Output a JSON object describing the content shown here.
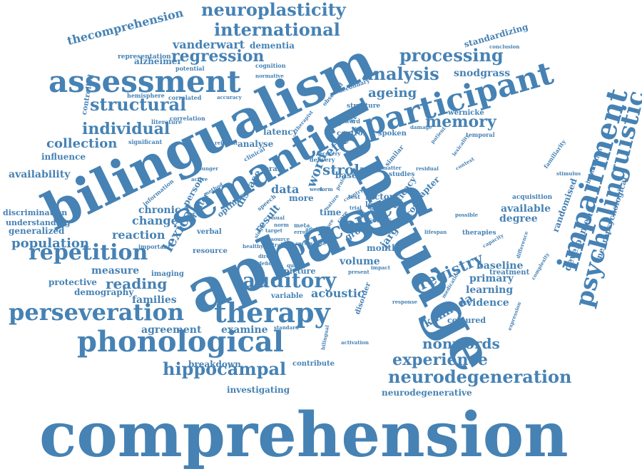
{
  "word_cloud": {
    "color": "#4682b4",
    "words": [
      {
        "text": "comprehension",
        "weight": 100
      },
      {
        "text": "language",
        "weight": 98
      },
      {
        "text": "aphasia",
        "weight": 96
      },
      {
        "text": "bilingualism",
        "weight": 95
      },
      {
        "text": "semantic",
        "weight": 75
      },
      {
        "text": "participant",
        "weight": 62
      },
      {
        "text": "impairment",
        "weight": 55
      },
      {
        "text": "psycholinguistic",
        "weight": 52
      },
      {
        "text": "assessment",
        "weight": 48
      },
      {
        "text": "phonological",
        "weight": 47
      },
      {
        "text": "therapy",
        "weight": 42
      },
      {
        "text": "outcome",
        "weight": 40
      },
      {
        "text": "perseveration",
        "weight": 40
      },
      {
        "text": "repetition",
        "weight": 37
      },
      {
        "text": "auditory",
        "weight": 33
      },
      {
        "text": "neuroplasticity",
        "weight": 30
      },
      {
        "text": "hippocampal",
        "weight": 30
      },
      {
        "text": "neurodegeneration",
        "weight": 30
      },
      {
        "text": "structural",
        "weight": 29
      },
      {
        "text": "processing",
        "weight": 28
      },
      {
        "text": "international",
        "weight": 28
      },
      {
        "text": "analysis",
        "weight": 27
      },
      {
        "text": "individual",
        "weight": 26
      },
      {
        "text": "regression",
        "weight": 26
      },
      {
        "text": "memory",
        "weight": 26
      },
      {
        "text": "experience",
        "weight": 26
      },
      {
        "text": "reading",
        "weight": 25
      },
      {
        "text": "nonwords",
        "weight": 25
      },
      {
        "text": "registry",
        "weight": 25
      },
      {
        "text": "lexical",
        "weight": 24
      },
      {
        "text": "stroke",
        "weight": 24
      },
      {
        "text": "population",
        "weight": 21
      },
      {
        "text": "collection",
        "weight": 21
      },
      {
        "text": "ageing",
        "weight": 21
      },
      {
        "text": "effect",
        "weight": 21
      },
      {
        "text": "word",
        "weight": 21
      },
      {
        "text": "vanderwart",
        "weight": 20
      },
      {
        "text": "change",
        "weight": 19
      },
      {
        "text": "reaction",
        "weight": 19
      },
      {
        "text": "thecomprehension",
        "weight": 18
      },
      {
        "text": "acoustic",
        "weight": 18
      },
      {
        "text": "kannada",
        "weight": 18
      },
      {
        "text": "data",
        "weight": 18
      },
      {
        "text": "availability",
        "weight": 17
      },
      {
        "text": "chronic",
        "weight": 17
      },
      {
        "text": "learning",
        "weight": 17
      },
      {
        "text": "primary",
        "weight": 17
      },
      {
        "text": "baseline",
        "weight": 17
      },
      {
        "text": "available",
        "weight": 17
      },
      {
        "text": "degree",
        "weight": 17
      },
      {
        "text": "families",
        "weight": 17
      },
      {
        "text": "snodgrass",
        "weight": 16
      },
      {
        "text": "alzheimer",
        "weight": 16
      },
      {
        "text": "dementia",
        "weight": 15
      },
      {
        "text": "standardizing",
        "weight": 15
      },
      {
        "text": "evidence",
        "weight": 15
      },
      {
        "text": "agreement",
        "weight": 15
      },
      {
        "text": "examine",
        "weight": 15
      },
      {
        "text": "measure",
        "weight": 15
      },
      {
        "text": "protective",
        "weight": 15
      },
      {
        "text": "development",
        "weight": 15
      },
      {
        "text": "randomised",
        "weight": 15
      },
      {
        "text": "influence",
        "weight": 14
      },
      {
        "text": "volume",
        "weight": 14
      },
      {
        "text": "generalized",
        "weight": 14
      },
      {
        "text": "understanding",
        "weight": 14
      },
      {
        "text": "discrimination",
        "weight": 14
      },
      {
        "text": "demography",
        "weight": 14
      },
      {
        "text": "breakdown",
        "weight": 14
      },
      {
        "text": "investigating",
        "weight": 14
      },
      {
        "text": "neurodegenerative",
        "weight": 14
      },
      {
        "text": "coloured",
        "weight": 14
      },
      {
        "text": "person",
        "weight": 14
      },
      {
        "text": "latency",
        "weight": 14
      },
      {
        "text": "analyse",
        "weight": 14
      },
      {
        "text": "jargon",
        "weight": 14
      },
      {
        "text": "chapter",
        "weight": 14
      },
      {
        "text": "efficacy",
        "weight": 14
      },
      {
        "text": "disease",
        "weight": 14
      },
      {
        "text": "result",
        "weight": 14
      },
      {
        "text": "optimise",
        "weight": 14
      },
      {
        "text": "neuropsychological",
        "weight": 13
      },
      {
        "text": "more",
        "weight": 13
      },
      {
        "text": "factor",
        "weight": 13
      },
      {
        "text": "month",
        "weight": 13
      },
      {
        "text": "greater",
        "weight": 13
      },
      {
        "text": "cross",
        "weight": 13
      },
      {
        "text": "group",
        "weight": 12
      },
      {
        "text": "picture",
        "weight": 12
      },
      {
        "text": "time",
        "weight": 12
      },
      {
        "text": "treatment",
        "weight": 12
      },
      {
        "text": "verbal",
        "weight": 11
      },
      {
        "text": "controlled",
        "weight": 11
      },
      {
        "text": "variable",
        "weight": 11
      },
      {
        "text": "wernicke",
        "weight": 11
      },
      {
        "text": "therapies",
        "weight": 11
      },
      {
        "text": "acquisition",
        "weight": 11
      },
      {
        "text": "based",
        "weight": 11
      },
      {
        "text": "series",
        "weight": 11
      },
      {
        "text": "lesion",
        "weight": 11
      },
      {
        "text": "brain",
        "weight": 11
      },
      {
        "text": "imaging",
        "weight": 11
      },
      {
        "text": "resource",
        "weight": 11
      },
      {
        "text": "contribute",
        "weight": 11
      },
      {
        "text": "disorder",
        "weight": 11
      },
      {
        "text": "study",
        "weight": 11
      },
      {
        "text": "control",
        "weight": 11
      },
      {
        "text": "spoken",
        "weight": 11
      },
      {
        "text": "temporal",
        "weight": 10
      },
      {
        "text": "studies",
        "weight": 10
      },
      {
        "text": "similar",
        "weight": 10
      },
      {
        "text": "structure",
        "weight": 10
      },
      {
        "text": "representation",
        "weight": 10
      },
      {
        "text": "hemisphere",
        "weight": 10
      },
      {
        "text": "correlation",
        "weight": 10
      },
      {
        "text": "literature",
        "weight": 10
      },
      {
        "text": "significant",
        "weight": 10
      },
      {
        "text": "information",
        "weight": 10
      },
      {
        "text": "important",
        "weight": 10
      },
      {
        "text": "nonword",
        "weight": 10
      },
      {
        "text": "rehabilitation",
        "weight": 10
      },
      {
        "text": "familiarity",
        "weight": 10
      },
      {
        "text": "stimulus",
        "weight": 10
      },
      {
        "text": "possible",
        "weight": 10
      },
      {
        "text": "observed",
        "weight": 10
      },
      {
        "text": "secondary",
        "weight": 10
      },
      {
        "text": "potential",
        "weight": 10
      },
      {
        "text": "cognition",
        "weight": 9
      },
      {
        "text": "correlated",
        "weight": 9
      },
      {
        "text": "accuracy",
        "weight": 9
      },
      {
        "text": "normative",
        "weight": 9
      },
      {
        "text": "conclusion",
        "weight": 9
      },
      {
        "text": "method",
        "weight": 9
      },
      {
        "text": "active",
        "weight": 9
      },
      {
        "text": "younger",
        "weight": 9
      },
      {
        "text": "relevant",
        "weight": 9
      },
      {
        "text": "clinical",
        "weight": 9
      },
      {
        "text": "delivery",
        "weight": 9
      },
      {
        "text": "recovery",
        "weight": 9
      },
      {
        "text": "therapist",
        "weight": 9
      },
      {
        "text": "damage",
        "weight": 9
      },
      {
        "text": "patient",
        "weight": 9
      },
      {
        "text": "lexicality",
        "weight": 9
      },
      {
        "text": "residual",
        "weight": 9
      },
      {
        "text": "context",
        "weight": 9
      },
      {
        "text": "matter",
        "weight": 9
      },
      {
        "text": "praise",
        "weight": 9
      },
      {
        "text": "capacity",
        "weight": 9
      },
      {
        "text": "lifespan",
        "weight": 9
      },
      {
        "text": "difference",
        "weight": 9
      },
      {
        "text": "complexity",
        "weight": 9
      },
      {
        "text": "expression",
        "weight": 9
      },
      {
        "text": "medication",
        "weight": 9
      },
      {
        "text": "response",
        "weight": 9
      },
      {
        "text": "activation",
        "weight": 9
      },
      {
        "text": "bilingual",
        "weight": 9
      },
      {
        "text": "present",
        "weight": 9
      },
      {
        "text": "quality",
        "weight": 9
      },
      {
        "text": "healthy",
        "weight": 9
      },
      {
        "text": "direct",
        "weight": 9
      },
      {
        "text": "deficit",
        "weight": 9
      },
      {
        "text": "standard",
        "weight": 9
      },
      {
        "text": "impact",
        "weight": 9
      },
      {
        "text": "meta",
        "weight": 8
      },
      {
        "text": "adult",
        "weight": 8
      },
      {
        "text": "norm",
        "weight": 8
      },
      {
        "text": "error",
        "weight": 8
      },
      {
        "text": "target",
        "weight": 8
      },
      {
        "text": "visual",
        "weight": 8
      },
      {
        "text": "week",
        "weight": 8
      },
      {
        "text": "form",
        "weight": 8
      },
      {
        "text": "goal",
        "weight": 8
      },
      {
        "text": "test",
        "weight": 8
      },
      {
        "text": "trial",
        "weight": 8
      },
      {
        "text": "care",
        "weight": 8
      },
      {
        "text": "pre",
        "weight": 8
      },
      {
        "text": "post",
        "weight": 8
      },
      {
        "text": "nature",
        "weight": 8
      },
      {
        "text": "country",
        "weight": 8
      },
      {
        "text": "region",
        "weight": 8
      },
      {
        "text": "speech",
        "weight": 8
      },
      {
        "text": "central",
        "weight": 8
      },
      {
        "text": "cortex",
        "weight": 8
      },
      {
        "text": "source",
        "weight": 8
      },
      {
        "text": "single",
        "weight": 8
      },
      {
        "text": "case",
        "weight": 8
      }
    ]
  }
}
